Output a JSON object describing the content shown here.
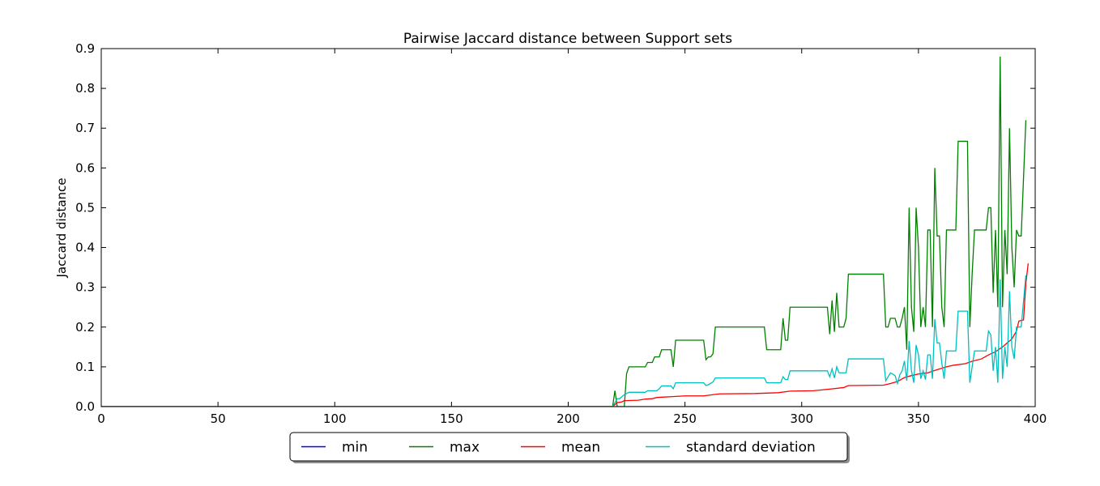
{
  "chart_data": {
    "type": "line",
    "title": "Pairwise Jaccard distance between Support sets",
    "xlabel": "",
    "ylabel": "Jaccard distance",
    "xlim": [
      0,
      400
    ],
    "ylim": [
      0,
      0.9
    ],
    "xticks": [
      "0",
      "50",
      "100",
      "150",
      "200",
      "250",
      "300",
      "350",
      "400"
    ],
    "yticks": [
      "0.0",
      "0.1",
      "0.2",
      "0.3",
      "0.4",
      "0.5",
      "0.6",
      "0.7",
      "0.8",
      "0.9"
    ],
    "grid": false,
    "legend_position": "bottom-center",
    "series": [
      {
        "name": "min",
        "color": "#0000ff",
        "points": [
          [
            0,
            0
          ],
          [
            220,
            0
          ],
          [
            394,
            0
          ]
        ]
      },
      {
        "name": "max",
        "color": "#008000",
        "points": [
          [
            0,
            0
          ],
          [
            219,
            0
          ],
          [
            220,
            0.04
          ],
          [
            221,
            0.0
          ],
          [
            224,
            0.0
          ],
          [
            225,
            0.083
          ],
          [
            226,
            0.1
          ],
          [
            233,
            0.1
          ],
          [
            234,
            0.111
          ],
          [
            236,
            0.111
          ],
          [
            237,
            0.125
          ],
          [
            239,
            0.125
          ],
          [
            240,
            0.143
          ],
          [
            244,
            0.143
          ],
          [
            245,
            0.1
          ],
          [
            246,
            0.167
          ],
          [
            258,
            0.167
          ],
          [
            259,
            0.118
          ],
          [
            260,
            0.125
          ],
          [
            261,
            0.125
          ],
          [
            262,
            0.133
          ],
          [
            263,
            0.2
          ],
          [
            284,
            0.2
          ],
          [
            285,
            0.143
          ],
          [
            291,
            0.143
          ],
          [
            292,
            0.222
          ],
          [
            293,
            0.167
          ],
          [
            294,
            0.167
          ],
          [
            295,
            0.25
          ],
          [
            311,
            0.25
          ],
          [
            312,
            0.182
          ],
          [
            313,
            0.267
          ],
          [
            314,
            0.188
          ],
          [
            315,
            0.286
          ],
          [
            316,
            0.2
          ],
          [
            318,
            0.2
          ],
          [
            319,
            0.222
          ],
          [
            320,
            0.333
          ],
          [
            335,
            0.333
          ],
          [
            336,
            0.2
          ],
          [
            337,
            0.2
          ],
          [
            338,
            0.222
          ],
          [
            339,
            0.222
          ],
          [
            340,
            0.222
          ],
          [
            341,
            0.2
          ],
          [
            342,
            0.2
          ],
          [
            343,
            0.222
          ],
          [
            344,
            0.25
          ],
          [
            345,
            0.143
          ],
          [
            346,
            0.5
          ],
          [
            347,
            0.25
          ],
          [
            348,
            0.188
          ],
          [
            349,
            0.5
          ],
          [
            350,
            0.4
          ],
          [
            351,
            0.2
          ],
          [
            352,
            0.25
          ],
          [
            353,
            0.2
          ],
          [
            354,
            0.444
          ],
          [
            355,
            0.444
          ],
          [
            356,
            0.2
          ],
          [
            357,
            0.6
          ],
          [
            358,
            0.429
          ],
          [
            359,
            0.429
          ],
          [
            360,
            0.25
          ],
          [
            361,
            0.2
          ],
          [
            362,
            0.444
          ],
          [
            366,
            0.444
          ],
          [
            367,
            0.667
          ],
          [
            371,
            0.667
          ],
          [
            372,
            0.2
          ],
          [
            373,
            0.333
          ],
          [
            374,
            0.444
          ],
          [
            379,
            0.444
          ],
          [
            380,
            0.5
          ],
          [
            381,
            0.5
          ],
          [
            382,
            0.286
          ],
          [
            383,
            0.444
          ],
          [
            384,
            0.25
          ],
          [
            385,
            0.88
          ],
          [
            386,
            0.25
          ],
          [
            387,
            0.444
          ],
          [
            388,
            0.333
          ],
          [
            389,
            0.7
          ],
          [
            390,
            0.4
          ],
          [
            391,
            0.3
          ],
          [
            392,
            0.444
          ],
          [
            393,
            0.429
          ],
          [
            394,
            0.429
          ],
          [
            396,
            0.72
          ]
        ]
      },
      {
        "name": "mean",
        "color": "#ff0000",
        "points": [
          [
            0,
            0
          ],
          [
            219,
            0
          ],
          [
            220,
            0.005
          ],
          [
            221,
            0.01
          ],
          [
            223,
            0.012
          ],
          [
            224,
            0.015
          ],
          [
            230,
            0.016
          ],
          [
            233,
            0.019
          ],
          [
            236,
            0.02
          ],
          [
            238,
            0.023
          ],
          [
            241,
            0.024
          ],
          [
            244,
            0.025
          ],
          [
            247,
            0.026
          ],
          [
            250,
            0.027
          ],
          [
            258,
            0.027
          ],
          [
            262,
            0.03
          ],
          [
            265,
            0.032
          ],
          [
            280,
            0.033
          ],
          [
            290,
            0.035
          ],
          [
            295,
            0.039
          ],
          [
            305,
            0.04
          ],
          [
            312,
            0.044
          ],
          [
            318,
            0.048
          ],
          [
            320,
            0.053
          ],
          [
            335,
            0.054
          ],
          [
            338,
            0.058
          ],
          [
            341,
            0.063
          ],
          [
            344,
            0.073
          ],
          [
            347,
            0.078
          ],
          [
            350,
            0.082
          ],
          [
            354,
            0.085
          ],
          [
            358,
            0.093
          ],
          [
            362,
            0.1
          ],
          [
            365,
            0.104
          ],
          [
            370,
            0.108
          ],
          [
            373,
            0.114
          ],
          [
            377,
            0.12
          ],
          [
            380,
            0.13
          ],
          [
            383,
            0.138
          ],
          [
            386,
            0.15
          ],
          [
            388,
            0.16
          ],
          [
            390,
            0.17
          ],
          [
            392,
            0.19
          ],
          [
            393,
            0.215
          ],
          [
            395,
            0.218
          ],
          [
            396,
            0.31
          ],
          [
            397,
            0.36
          ]
        ]
      },
      {
        "name": "standard deviation",
        "color": "#00bfbf",
        "points": [
          [
            0,
            0
          ],
          [
            219,
            0
          ],
          [
            220,
            0.01
          ],
          [
            221,
            0.02
          ],
          [
            222,
            0.02
          ],
          [
            224,
            0.03
          ],
          [
            226,
            0.036
          ],
          [
            233,
            0.036
          ],
          [
            234,
            0.04
          ],
          [
            238,
            0.04
          ],
          [
            239,
            0.045
          ],
          [
            240,
            0.052
          ],
          [
            244,
            0.052
          ],
          [
            245,
            0.045
          ],
          [
            246,
            0.06
          ],
          [
            258,
            0.06
          ],
          [
            259,
            0.053
          ],
          [
            260,
            0.055
          ],
          [
            262,
            0.062
          ],
          [
            263,
            0.072
          ],
          [
            284,
            0.072
          ],
          [
            285,
            0.06
          ],
          [
            291,
            0.06
          ],
          [
            292,
            0.075
          ],
          [
            293,
            0.068
          ],
          [
            294,
            0.068
          ],
          [
            295,
            0.09
          ],
          [
            311,
            0.09
          ],
          [
            312,
            0.075
          ],
          [
            313,
            0.095
          ],
          [
            314,
            0.072
          ],
          [
            315,
            0.1
          ],
          [
            316,
            0.085
          ],
          [
            319,
            0.085
          ],
          [
            320,
            0.12
          ],
          [
            335,
            0.12
          ],
          [
            336,
            0.065
          ],
          [
            338,
            0.085
          ],
          [
            340,
            0.078
          ],
          [
            341,
            0.058
          ],
          [
            342,
            0.08
          ],
          [
            343,
            0.09
          ],
          [
            344,
            0.115
          ],
          [
            345,
            0.065
          ],
          [
            346,
            0.165
          ],
          [
            347,
            0.09
          ],
          [
            348,
            0.06
          ],
          [
            349,
            0.155
          ],
          [
            350,
            0.13
          ],
          [
            351,
            0.07
          ],
          [
            352,
            0.09
          ],
          [
            353,
            0.068
          ],
          [
            354,
            0.13
          ],
          [
            355,
            0.13
          ],
          [
            356,
            0.07
          ],
          [
            357,
            0.22
          ],
          [
            358,
            0.16
          ],
          [
            359,
            0.16
          ],
          [
            360,
            0.11
          ],
          [
            361,
            0.07
          ],
          [
            362,
            0.14
          ],
          [
            366,
            0.14
          ],
          [
            367,
            0.24
          ],
          [
            371,
            0.24
          ],
          [
            372,
            0.06
          ],
          [
            373,
            0.1
          ],
          [
            374,
            0.14
          ],
          [
            379,
            0.14
          ],
          [
            380,
            0.19
          ],
          [
            381,
            0.18
          ],
          [
            382,
            0.09
          ],
          [
            383,
            0.15
          ],
          [
            384,
            0.06
          ],
          [
            385,
            0.32
          ],
          [
            386,
            0.07
          ],
          [
            387,
            0.15
          ],
          [
            388,
            0.1
          ],
          [
            389,
            0.29
          ],
          [
            390,
            0.15
          ],
          [
            391,
            0.12
          ],
          [
            392,
            0.2
          ],
          [
            393,
            0.2
          ],
          [
            394,
            0.2
          ],
          [
            396,
            0.33
          ]
        ]
      }
    ]
  }
}
